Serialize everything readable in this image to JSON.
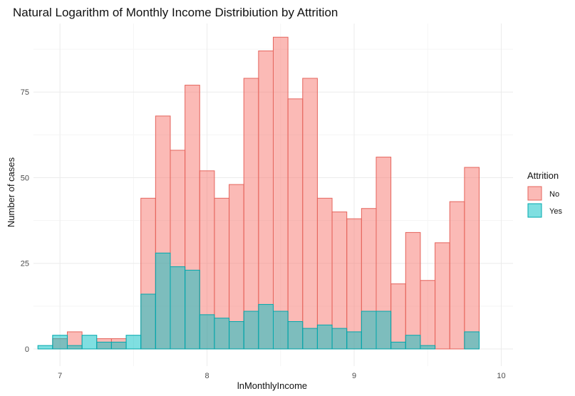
{
  "chart_data": {
    "type": "bar",
    "title": "Natural Logarithm of Monthly Income Distribiution by Attrition",
    "xlabel": "lnMonthlyIncome",
    "ylabel": "Number of cases",
    "xlim": [
      6.82,
      10.08
    ],
    "ylim": [
      -5,
      95
    ],
    "x_ticks": [
      7,
      8,
      9,
      10
    ],
    "y_ticks": [
      0,
      25,
      50,
      75
    ],
    "x_tick_labels": [
      "7",
      "8",
      "9",
      "10"
    ],
    "y_tick_labels": [
      "0",
      "25",
      "50",
      "75"
    ],
    "grid": true,
    "legend": {
      "title": "Attrition",
      "position": "right",
      "items": [
        "No",
        "Yes"
      ]
    },
    "bins": [
      {
        "x0": 6.85,
        "x1": 6.95
      },
      {
        "x0": 6.95,
        "x1": 7.05
      },
      {
        "x0": 7.05,
        "x1": 7.15
      },
      {
        "x0": 7.15,
        "x1": 7.25
      },
      {
        "x0": 7.25,
        "x1": 7.35
      },
      {
        "x0": 7.35,
        "x1": 7.45
      },
      {
        "x0": 7.45,
        "x1": 7.55
      },
      {
        "x0": 7.55,
        "x1": 7.65
      },
      {
        "x0": 7.65,
        "x1": 7.75
      },
      {
        "x0": 7.75,
        "x1": 7.85
      },
      {
        "x0": 7.85,
        "x1": 7.95
      },
      {
        "x0": 7.95,
        "x1": 8.05
      },
      {
        "x0": 8.05,
        "x1": 8.15
      },
      {
        "x0": 8.15,
        "x1": 8.25
      },
      {
        "x0": 8.25,
        "x1": 8.35
      },
      {
        "x0": 8.35,
        "x1": 8.45
      },
      {
        "x0": 8.45,
        "x1": 8.55
      },
      {
        "x0": 8.55,
        "x1": 8.65
      },
      {
        "x0": 8.65,
        "x1": 8.75
      },
      {
        "x0": 8.75,
        "x1": 8.85
      },
      {
        "x0": 8.85,
        "x1": 8.95
      },
      {
        "x0": 8.95,
        "x1": 9.05
      },
      {
        "x0": 9.05,
        "x1": 9.15
      },
      {
        "x0": 9.15,
        "x1": 9.25
      },
      {
        "x0": 9.25,
        "x1": 9.35
      },
      {
        "x0": 9.35,
        "x1": 9.45
      },
      {
        "x0": 9.45,
        "x1": 9.55
      },
      {
        "x0": 9.55,
        "x1": 9.65
      },
      {
        "x0": 9.65,
        "x1": 9.75
      },
      {
        "x0": 9.75,
        "x1": 9.85
      },
      {
        "x0": 9.85,
        "x1": 9.95
      }
    ],
    "series": [
      {
        "name": "No",
        "fill": "#F8766D",
        "stroke": "#E5645C",
        "values": [
          0,
          3,
          5,
          0,
          3,
          3,
          0,
          44,
          68,
          58,
          77,
          52,
          44,
          48,
          79,
          87,
          91,
          73,
          79,
          44,
          40,
          38,
          41,
          56,
          19,
          34,
          20,
          31,
          43,
          53,
          0
        ]
      },
      {
        "name": "Yes",
        "fill": "#00BFC4",
        "stroke": "#00A8AD",
        "values": [
          1,
          4,
          1,
          4,
          2,
          2,
          4,
          16,
          28,
          24,
          23,
          10,
          9,
          8,
          11,
          13,
          11,
          8,
          6,
          7,
          6,
          5,
          11,
          11,
          2,
          4,
          1,
          0,
          0,
          5,
          0
        ]
      }
    ],
    "colors": {
      "background": "#ffffff",
      "panel_background": "#ffffff",
      "grid_major": "#EBEBEB",
      "grid_minor": "#F5F5F5",
      "text": "#111111",
      "tick_text": "#4d4d4d",
      "no_fill": "#F8766D",
      "yes_fill": "#00BFC4"
    }
  }
}
